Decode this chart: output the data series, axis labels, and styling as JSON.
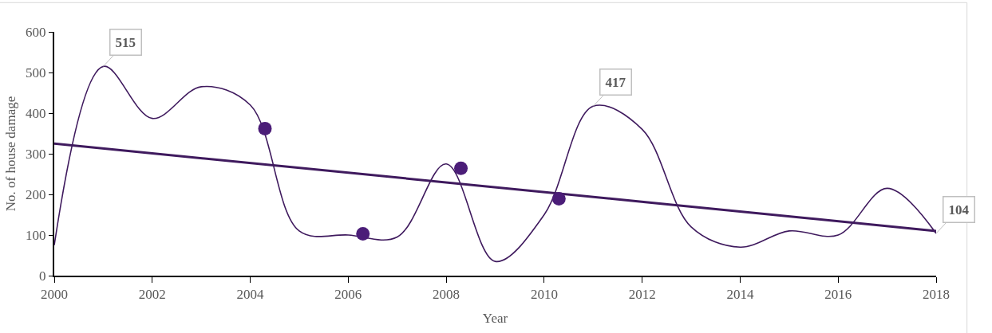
{
  "chart_data": {
    "type": "line",
    "xlabel": "Year",
    "ylabel": "No. of house damage",
    "x": [
      2000,
      2001,
      2002,
      2003,
      2004,
      2005,
      2006,
      2007,
      2008,
      2009,
      2010,
      2011,
      2012,
      2013,
      2014,
      2015,
      2016,
      2017,
      2018
    ],
    "xlim": [
      2000,
      2018
    ],
    "xticks": [
      2000,
      2002,
      2004,
      2006,
      2008,
      2010,
      2012,
      2014,
      2016,
      2018
    ],
    "ylim": [
      0,
      600
    ],
    "yticks": [
      0,
      100,
      200,
      300,
      400,
      500,
      600
    ],
    "series": [
      {
        "color": "#3f1a5e",
        "values": [
          75,
          515,
          387,
          465,
          420,
          110,
          100,
          95,
          275,
          35,
          150,
          417,
          360,
          120,
          70,
          110,
          100,
          215,
          104
        ]
      },
      {
        "type": "line",
        "color": "#3f1a5e",
        "x": [
          2000,
          2018
        ],
        "values": [
          325,
          110
        ]
      },
      {
        "type": "scatter",
        "marker": "circle",
        "color": "#4b1d78",
        "x": [
          2004.3,
          2006.3,
          2008.3,
          2010.3
        ],
        "values": [
          362,
          103,
          264,
          189
        ]
      }
    ],
    "annotations": [
      {
        "text": "515",
        "x": 2001,
        "y": 515
      },
      {
        "text": "417",
        "x": 2011,
        "y": 417
      },
      {
        "text": "104",
        "x": 2018,
        "y": 104
      }
    ],
    "marker": "none"
  }
}
